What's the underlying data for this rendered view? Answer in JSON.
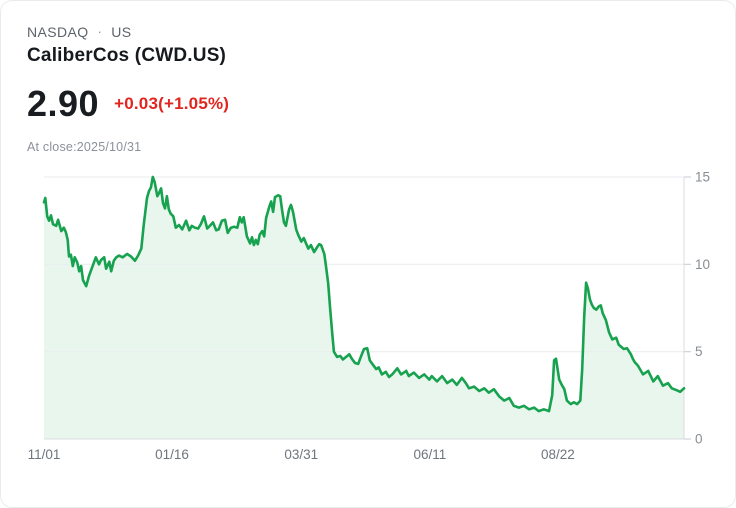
{
  "header": {
    "exchange": "NASDAQ",
    "separator": "·",
    "region": "US",
    "title": "CaliberCos (CWD.US)"
  },
  "quote": {
    "price": "2.90",
    "change": "+0.03(+1.05%)",
    "as_of": "At close:2025/10/31",
    "change_color": "#e2251f"
  },
  "chart_data": {
    "type": "area",
    "title": "CaliberCos (CWD.US) 1-year price history",
    "xlabel": "",
    "ylabel": "",
    "ylim": [
      0,
      15
    ],
    "grid": true,
    "legend_position": "none",
    "y_ticks": [
      15,
      10,
      5,
      0
    ],
    "x_ticks": [
      {
        "label": "11/01",
        "t": 0.0
      },
      {
        "label": "01/16",
        "t": 0.2
      },
      {
        "label": "03/31",
        "t": 0.402
      },
      {
        "label": "06/11",
        "t": 0.603
      },
      {
        "label": "08/22",
        "t": 0.803
      }
    ],
    "colors": {
      "line": "#17a24f",
      "fill_opacity": 0.095,
      "gridline": "#e9ebed",
      "axis": "#d9dce0",
      "tick": "#c7cbd0",
      "y_label": "#878d94",
      "x_label": "#6f757c"
    },
    "series": [
      {
        "name": "CWD.US",
        "points": [
          [
            0.0,
            13.55
          ],
          [
            0.002,
            13.8
          ],
          [
            0.005,
            12.75
          ],
          [
            0.008,
            12.5
          ],
          [
            0.011,
            12.8
          ],
          [
            0.014,
            12.3
          ],
          [
            0.019,
            12.2
          ],
          [
            0.022,
            12.55
          ],
          [
            0.027,
            11.9
          ],
          [
            0.031,
            12.1
          ],
          [
            0.034,
            11.85
          ],
          [
            0.037,
            11.4
          ],
          [
            0.039,
            10.45
          ],
          [
            0.042,
            10.55
          ],
          [
            0.045,
            9.9
          ],
          [
            0.048,
            10.4
          ],
          [
            0.052,
            10.1
          ],
          [
            0.055,
            9.6
          ],
          [
            0.058,
            9.9
          ],
          [
            0.061,
            9.1
          ],
          [
            0.066,
            8.75
          ],
          [
            0.07,
            9.3
          ],
          [
            0.073,
            9.6
          ],
          [
            0.078,
            10.1
          ],
          [
            0.081,
            10.4
          ],
          [
            0.086,
            10.0
          ],
          [
            0.089,
            10.25
          ],
          [
            0.094,
            10.4
          ],
          [
            0.097,
            9.75
          ],
          [
            0.102,
            10.15
          ],
          [
            0.105,
            9.6
          ],
          [
            0.109,
            10.2
          ],
          [
            0.113,
            10.4
          ],
          [
            0.117,
            10.5
          ],
          [
            0.123,
            10.4
          ],
          [
            0.13,
            10.6
          ],
          [
            0.136,
            10.45
          ],
          [
            0.142,
            10.2
          ],
          [
            0.147,
            10.5
          ],
          [
            0.152,
            10.9
          ],
          [
            0.156,
            12.3
          ],
          [
            0.161,
            13.8
          ],
          [
            0.164,
            14.2
          ],
          [
            0.167,
            14.4
          ],
          [
            0.17,
            15.0
          ],
          [
            0.173,
            14.7
          ],
          [
            0.177,
            13.9
          ],
          [
            0.18,
            14.1
          ],
          [
            0.183,
            14.35
          ],
          [
            0.186,
            13.5
          ],
          [
            0.189,
            13.2
          ],
          [
            0.192,
            13.9
          ],
          [
            0.195,
            13.15
          ],
          [
            0.198,
            12.9
          ],
          [
            0.202,
            12.75
          ],
          [
            0.206,
            12.1
          ],
          [
            0.211,
            12.25
          ],
          [
            0.216,
            12.0
          ],
          [
            0.222,
            12.5
          ],
          [
            0.227,
            11.95
          ],
          [
            0.231,
            12.2
          ],
          [
            0.236,
            12.1
          ],
          [
            0.241,
            12.05
          ],
          [
            0.245,
            12.3
          ],
          [
            0.25,
            12.75
          ],
          [
            0.255,
            12.05
          ],
          [
            0.259,
            12.2
          ],
          [
            0.264,
            12.4
          ],
          [
            0.269,
            11.95
          ],
          [
            0.273,
            12.0
          ],
          [
            0.278,
            12.5
          ],
          [
            0.283,
            12.55
          ],
          [
            0.287,
            11.8
          ],
          [
            0.292,
            12.1
          ],
          [
            0.297,
            12.15
          ],
          [
            0.302,
            12.1
          ],
          [
            0.306,
            12.7
          ],
          [
            0.309,
            12.4
          ],
          [
            0.312,
            12.7
          ],
          [
            0.317,
            11.6
          ],
          [
            0.322,
            11.2
          ],
          [
            0.325,
            11.55
          ],
          [
            0.328,
            11.1
          ],
          [
            0.331,
            11.4
          ],
          [
            0.334,
            11.15
          ],
          [
            0.337,
            11.7
          ],
          [
            0.341,
            11.9
          ],
          [
            0.344,
            11.6
          ],
          [
            0.347,
            12.65
          ],
          [
            0.352,
            13.3
          ],
          [
            0.355,
            13.6
          ],
          [
            0.358,
            13.0
          ],
          [
            0.361,
            13.85
          ],
          [
            0.366,
            13.95
          ],
          [
            0.369,
            13.9
          ],
          [
            0.372,
            13.1
          ],
          [
            0.375,
            12.4
          ],
          [
            0.378,
            12.2
          ],
          [
            0.383,
            13.15
          ],
          [
            0.386,
            13.4
          ],
          [
            0.389,
            13.0
          ],
          [
            0.394,
            12.0
          ],
          [
            0.397,
            11.7
          ],
          [
            0.402,
            11.3
          ],
          [
            0.406,
            11.5
          ],
          [
            0.413,
            10.9
          ],
          [
            0.417,
            11.1
          ],
          [
            0.422,
            10.7
          ],
          [
            0.427,
            11.0
          ],
          [
            0.43,
            11.15
          ],
          [
            0.433,
            11.1
          ],
          [
            0.438,
            10.6
          ],
          [
            0.441,
            9.8
          ],
          [
            0.444,
            8.9
          ],
          [
            0.447,
            7.5
          ],
          [
            0.45,
            6.2
          ],
          [
            0.453,
            5.0
          ],
          [
            0.458,
            4.7
          ],
          [
            0.463,
            4.75
          ],
          [
            0.467,
            4.55
          ],
          [
            0.472,
            4.7
          ],
          [
            0.477,
            4.85
          ],
          [
            0.481,
            4.6
          ],
          [
            0.486,
            4.35
          ],
          [
            0.491,
            4.3
          ],
          [
            0.495,
            4.7
          ],
          [
            0.5,
            5.15
          ],
          [
            0.505,
            5.2
          ],
          [
            0.509,
            4.5
          ],
          [
            0.514,
            4.25
          ],
          [
            0.519,
            4.0
          ],
          [
            0.523,
            4.1
          ],
          [
            0.528,
            3.7
          ],
          [
            0.534,
            3.85
          ],
          [
            0.539,
            3.55
          ],
          [
            0.544,
            3.7
          ],
          [
            0.552,
            4.05
          ],
          [
            0.558,
            3.7
          ],
          [
            0.566,
            3.9
          ],
          [
            0.57,
            3.6
          ],
          [
            0.578,
            3.8
          ],
          [
            0.586,
            3.5
          ],
          [
            0.594,
            3.7
          ],
          [
            0.602,
            3.4
          ],
          [
            0.606,
            3.6
          ],
          [
            0.614,
            3.3
          ],
          [
            0.622,
            3.6
          ],
          [
            0.63,
            3.2
          ],
          [
            0.638,
            3.4
          ],
          [
            0.645,
            3.1
          ],
          [
            0.653,
            3.5
          ],
          [
            0.659,
            3.2
          ],
          [
            0.664,
            2.9
          ],
          [
            0.672,
            3.0
          ],
          [
            0.68,
            2.75
          ],
          [
            0.688,
            2.9
          ],
          [
            0.695,
            2.65
          ],
          [
            0.703,
            2.85
          ],
          [
            0.711,
            2.45
          ],
          [
            0.719,
            2.2
          ],
          [
            0.727,
            2.35
          ],
          [
            0.734,
            1.9
          ],
          [
            0.742,
            1.8
          ],
          [
            0.75,
            1.9
          ],
          [
            0.758,
            1.7
          ],
          [
            0.766,
            1.8
          ],
          [
            0.773,
            1.6
          ],
          [
            0.781,
            1.7
          ],
          [
            0.789,
            1.6
          ],
          [
            0.794,
            2.5
          ],
          [
            0.797,
            4.5
          ],
          [
            0.8,
            4.6
          ],
          [
            0.805,
            3.4
          ],
          [
            0.809,
            3.1
          ],
          [
            0.813,
            2.85
          ],
          [
            0.817,
            2.2
          ],
          [
            0.823,
            2.0
          ],
          [
            0.828,
            2.1
          ],
          [
            0.833,
            2.0
          ],
          [
            0.838,
            2.2
          ],
          [
            0.841,
            4.0
          ],
          [
            0.844,
            7.0
          ],
          [
            0.847,
            8.95
          ],
          [
            0.85,
            8.6
          ],
          [
            0.853,
            8.0
          ],
          [
            0.856,
            7.7
          ],
          [
            0.859,
            7.5
          ],
          [
            0.863,
            7.4
          ],
          [
            0.867,
            7.6
          ],
          [
            0.87,
            7.65
          ],
          [
            0.873,
            7.2
          ],
          [
            0.878,
            6.8
          ],
          [
            0.883,
            6.1
          ],
          [
            0.888,
            5.7
          ],
          [
            0.894,
            5.8
          ],
          [
            0.898,
            5.4
          ],
          [
            0.906,
            5.15
          ],
          [
            0.911,
            5.2
          ],
          [
            0.917,
            4.85
          ],
          [
            0.92,
            4.6
          ],
          [
            0.923,
            4.4
          ],
          [
            0.928,
            4.2
          ],
          [
            0.936,
            3.7
          ],
          [
            0.944,
            3.9
          ],
          [
            0.952,
            3.3
          ],
          [
            0.959,
            3.6
          ],
          [
            0.967,
            3.05
          ],
          [
            0.975,
            3.2
          ],
          [
            0.981,
            2.9
          ],
          [
            0.988,
            2.8
          ],
          [
            0.994,
            2.7
          ],
          [
            1.0,
            2.9
          ]
        ]
      }
    ]
  }
}
